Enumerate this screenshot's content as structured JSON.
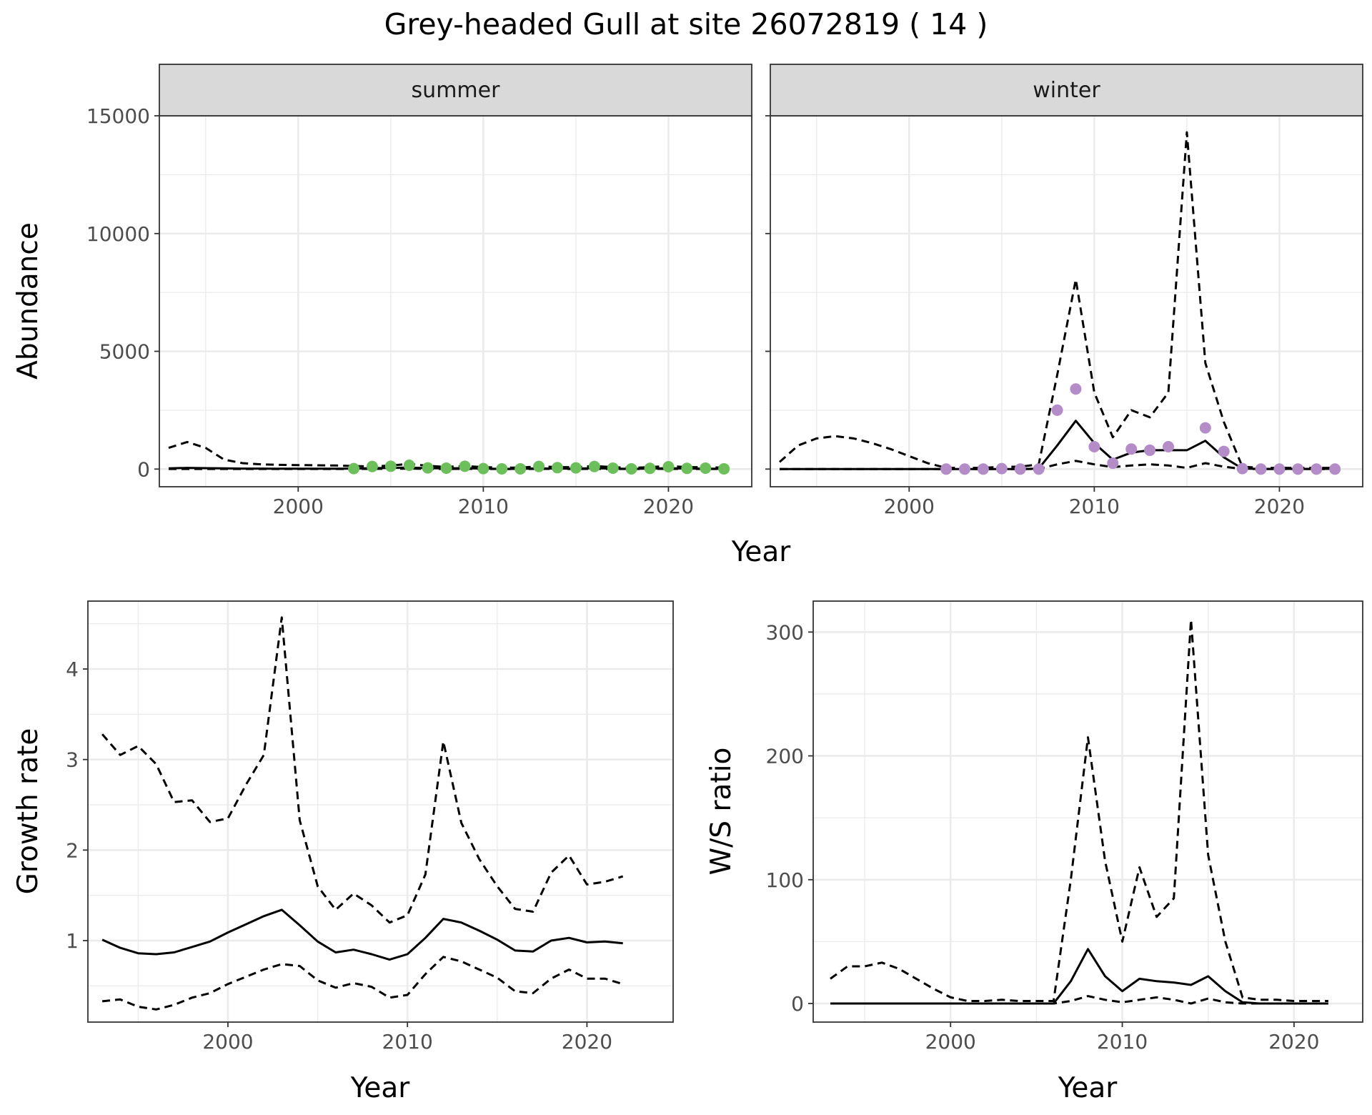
{
  "title": "Grey-headed Gull at site 26072819 ( 14 )",
  "colors": {
    "summer": "#6cbf5a",
    "winter": "#b48cc8",
    "line": "#000000",
    "grid": "#ebebeb",
    "strip": "#d9d9d9"
  },
  "chart_data": [
    {
      "id": "abundance",
      "type": "line",
      "ylabel": "Abundance",
      "xlabel": "Year",
      "xlim": [
        1992.5,
        2024.5
      ],
      "ylim": [
        -750,
        15000
      ],
      "xticks": [
        2000,
        2010,
        2020
      ],
      "yticks": [
        0,
        5000,
        10000,
        15000
      ],
      "grid": true,
      "facets": [
        {
          "strip": "summer",
          "point_color": "#6cbf5a",
          "x": [
            1993,
            1994,
            1995,
            1996,
            1997,
            1998,
            1999,
            2000,
            2001,
            2002,
            2003,
            2004,
            2005,
            2006,
            2007,
            2008,
            2009,
            2010,
            2011,
            2012,
            2013,
            2014,
            2015,
            2016,
            2017,
            2018,
            2019,
            2020,
            2021,
            2022,
            2023
          ],
          "estimate": [
            30,
            50,
            40,
            30,
            20,
            20,
            15,
            15,
            15,
            15,
            20,
            40,
            50,
            60,
            40,
            30,
            40,
            20,
            10,
            10,
            30,
            20,
            20,
            40,
            20,
            10,
            20,
            40,
            20,
            20,
            10
          ],
          "upper": [
            900,
            1150,
            900,
            400,
            250,
            200,
            180,
            170,
            160,
            150,
            130,
            110,
            150,
            220,
            140,
            90,
            130,
            80,
            60,
            60,
            120,
            80,
            80,
            130,
            80,
            50,
            80,
            130,
            80,
            80,
            60
          ],
          "lower": [
            5,
            5,
            5,
            5,
            5,
            5,
            5,
            5,
            5,
            5,
            5,
            10,
            15,
            20,
            10,
            5,
            10,
            5,
            3,
            3,
            8,
            5,
            5,
            10,
            5,
            3,
            5,
            10,
            5,
            5,
            3
          ],
          "points_x": [
            2003,
            2004,
            2005,
            2006,
            2007,
            2008,
            2009,
            2010,
            2011,
            2012,
            2013,
            2014,
            2015,
            2016,
            2017,
            2018,
            2019,
            2020,
            2021,
            2022,
            2023
          ],
          "points_y": [
            20,
            110,
            120,
            160,
            50,
            40,
            120,
            20,
            10,
            10,
            110,
            60,
            50,
            110,
            40,
            10,
            30,
            100,
            30,
            40,
            10
          ]
        },
        {
          "strip": "winter",
          "point_color": "#b48cc8",
          "x": [
            1993,
            1994,
            1995,
            1996,
            1997,
            1998,
            1999,
            2000,
            2001,
            2002,
            2003,
            2004,
            2005,
            2006,
            2007,
            2008,
            2009,
            2010,
            2011,
            2012,
            2013,
            2014,
            2015,
            2016,
            2017,
            2018,
            2019,
            2020,
            2021,
            2022,
            2023
          ],
          "estimate": [
            0,
            0,
            0,
            0,
            0,
            0,
            0,
            0,
            0,
            0,
            0,
            0,
            0,
            0,
            20,
            1000,
            2050,
            1100,
            400,
            700,
            800,
            800,
            800,
            1200,
            500,
            20,
            10,
            10,
            10,
            10,
            10
          ],
          "upper": [
            300,
            1000,
            1300,
            1400,
            1300,
            1100,
            850,
            550,
            250,
            50,
            50,
            50,
            100,
            100,
            200,
            4000,
            8050,
            3250,
            1350,
            2500,
            2200,
            3250,
            14300,
            4500,
            2000,
            100,
            50,
            50,
            50,
            50,
            50
          ],
          "lower": [
            0,
            0,
            0,
            0,
            0,
            0,
            0,
            0,
            0,
            0,
            0,
            0,
            0,
            0,
            5,
            200,
            350,
            200,
            80,
            150,
            200,
            150,
            50,
            250,
            100,
            5,
            2,
            2,
            2,
            2,
            2
          ],
          "points_x": [
            2002,
            2003,
            2004,
            2005,
            2006,
            2007,
            2008,
            2009,
            2010,
            2011,
            2012,
            2013,
            2014,
            2016,
            2017,
            2018,
            2019,
            2020,
            2021,
            2022,
            2023
          ],
          "points_y": [
            0,
            0,
            0,
            20,
            0,
            0,
            2500,
            3400,
            950,
            250,
            850,
            800,
            950,
            1750,
            750,
            20,
            0,
            0,
            0,
            0,
            0
          ]
        }
      ]
    },
    {
      "id": "growth",
      "type": "line",
      "ylabel": "Growth rate",
      "xlabel": "Year",
      "xlim": [
        1992.2,
        2024.8
      ],
      "ylim": [
        0.1,
        4.75
      ],
      "xticks": [
        2000,
        2010,
        2020
      ],
      "yticks": [
        1,
        2,
        3,
        4
      ],
      "grid": true,
      "x": [
        1993,
        1994,
        1995,
        1996,
        1997,
        1998,
        1999,
        2000,
        2001,
        2002,
        2003,
        2004,
        2005,
        2006,
        2007,
        2008,
        2009,
        2010,
        2011,
        2012,
        2013,
        2014,
        2015,
        2016,
        2017,
        2018,
        2019,
        2020,
        2021,
        2022
      ],
      "estimate": [
        1.01,
        0.92,
        0.86,
        0.85,
        0.87,
        0.93,
        0.99,
        1.09,
        1.18,
        1.27,
        1.34,
        1.17,
        0.99,
        0.87,
        0.9,
        0.85,
        0.79,
        0.85,
        1.03,
        1.24,
        1.2,
        1.11,
        1.01,
        0.89,
        0.88,
        1.0,
        1.03,
        0.98,
        0.99,
        0.97
      ],
      "upper": [
        3.28,
        3.05,
        3.15,
        2.95,
        2.53,
        2.55,
        2.31,
        2.35,
        2.72,
        3.05,
        4.57,
        2.33,
        1.6,
        1.34,
        1.52,
        1.39,
        1.2,
        1.28,
        1.73,
        3.2,
        2.3,
        1.9,
        1.6,
        1.35,
        1.32,
        1.75,
        1.94,
        1.62,
        1.65,
        1.71
      ],
      "lower": [
        0.33,
        0.35,
        0.27,
        0.24,
        0.29,
        0.37,
        0.42,
        0.52,
        0.6,
        0.68,
        0.74,
        0.72,
        0.56,
        0.48,
        0.53,
        0.49,
        0.37,
        0.4,
        0.63,
        0.82,
        0.77,
        0.68,
        0.59,
        0.44,
        0.42,
        0.58,
        0.68,
        0.58,
        0.58,
        0.52
      ]
    },
    {
      "id": "ws_ratio",
      "type": "line",
      "ylabel": "W/S ratio",
      "xlabel": "Year",
      "xlim": [
        1992.0,
        2024.0
      ],
      "ylim": [
        -15,
        325
      ],
      "xticks": [
        2000,
        2010,
        2020
      ],
      "yticks": [
        0,
        100,
        200,
        300
      ],
      "grid": true,
      "x": [
        1993,
        1994,
        1995,
        1996,
        1997,
        1998,
        1999,
        2000,
        2001,
        2002,
        2003,
        2004,
        2005,
        2006,
        2007,
        2008,
        2009,
        2010,
        2011,
        2012,
        2013,
        2014,
        2015,
        2016,
        2017,
        2018,
        2019,
        2020,
        2021,
        2022
      ],
      "estimate": [
        0,
        0,
        0,
        0,
        0,
        0,
        0,
        0,
        0,
        0,
        0,
        0,
        0,
        0,
        18,
        44,
        22,
        10,
        20,
        18,
        17,
        15,
        22,
        10,
        1,
        0,
        0,
        0,
        0,
        0
      ],
      "upper": [
        20,
        30,
        30,
        33,
        28,
        20,
        12,
        5,
        2,
        2,
        3,
        2,
        2,
        2,
        100,
        215,
        115,
        50,
        110,
        70,
        85,
        310,
        120,
        50,
        5,
        3,
        3,
        2,
        2,
        2
      ],
      "lower": [
        0,
        0,
        0,
        0,
        0,
        0,
        0,
        0,
        0,
        0,
        0,
        0,
        0,
        0,
        2,
        6,
        3,
        1,
        3,
        5,
        3,
        0,
        4,
        1,
        0,
        0,
        0,
        0,
        0,
        0
      ]
    }
  ]
}
